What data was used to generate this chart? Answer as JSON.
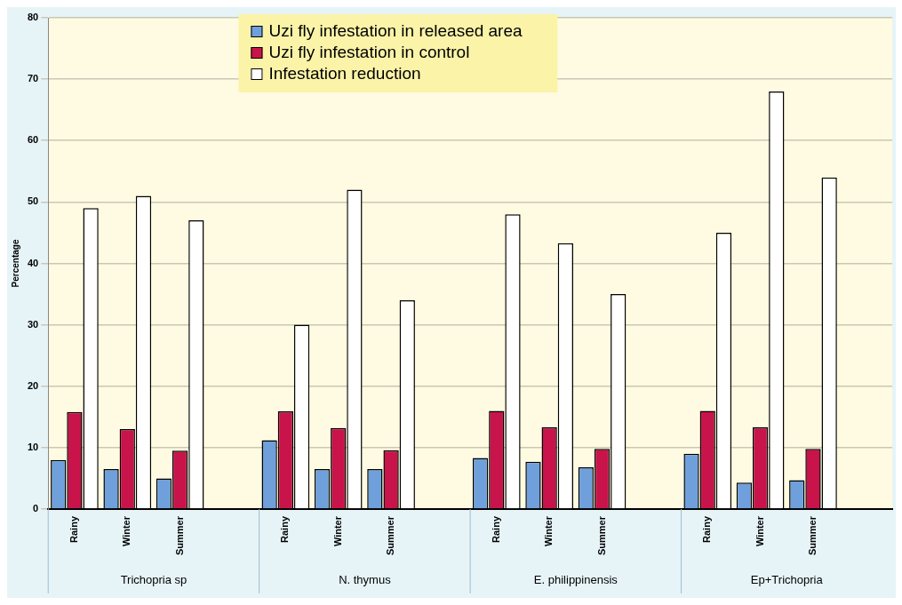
{
  "chart_data": {
    "type": "bar",
    "ylabel": "Percentage",
    "categories": [
      "Rainy",
      "Winter",
      "Summer",
      null,
      "Rainy",
      "Winter",
      "Summer",
      null,
      "Rainy",
      "Winter",
      "Summer",
      null,
      "Rainy",
      "Winter",
      "Summer",
      null
    ],
    "series": [
      {
        "name": "Uzi fly infestation in released area",
        "color": "#6fa0dc",
        "values": [
          8,
          6.5,
          5,
          null,
          11.2,
          6.5,
          6.5,
          null,
          8.3,
          7.7,
          6.8,
          null,
          9,
          4.3,
          4.7,
          null
        ]
      },
      {
        "name": "Uzi fly infestation in control",
        "color": "#c8144a",
        "values": [
          15.8,
          13,
          9.5,
          null,
          15.9,
          13.2,
          9.6,
          null,
          16,
          13.3,
          9.8,
          null,
          16,
          13.3,
          9.8,
          null
        ]
      },
      {
        "name": "Infestation reduction",
        "color": "#ffffff",
        "values": [
          49,
          51,
          47,
          null,
          30,
          52,
          34,
          null,
          48,
          43.3,
          35,
          null,
          45,
          68,
          54,
          null
        ]
      }
    ],
    "annotations": [
      "Trichopria sp",
      "N. thymus",
      "E. philippinensis",
      "Ep+Trichopria"
    ],
    "ylim": [
      0,
      80
    ],
    "yticks": [
      0,
      10,
      20,
      30,
      40,
      50,
      60,
      70,
      80
    ],
    "grid": "y",
    "legend": "top"
  }
}
